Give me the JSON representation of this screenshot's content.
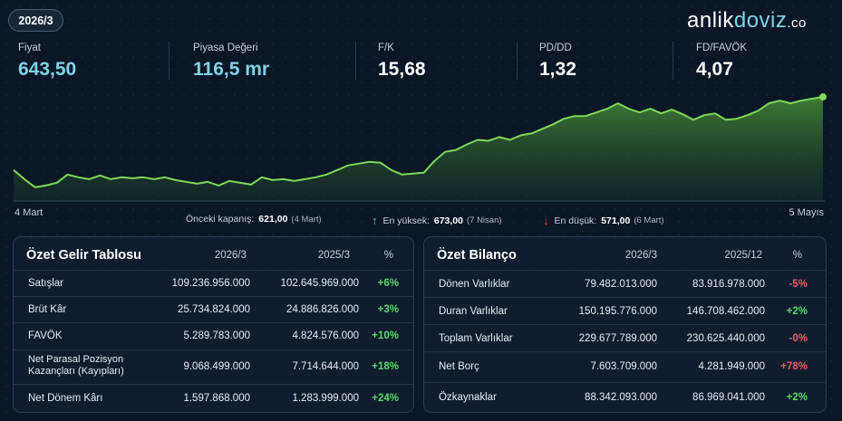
{
  "period": "2026/3",
  "logo": {
    "part1": "anlik",
    "part2": "doviz",
    "part3": ".co"
  },
  "kpis": [
    {
      "label": "Fiyat",
      "value": "643,50"
    },
    {
      "label": "Piyasa Değeri",
      "value": "116,5 mr"
    },
    {
      "label": "F/K",
      "value": "15,68"
    },
    {
      "label": "PD/DD",
      "value": "1,32"
    },
    {
      "label": "FD/FAVÖK",
      "value": "4,07"
    }
  ],
  "chart": {
    "start_label": "4 Mart",
    "end_label": "5 Mayıs",
    "line_color": "#7ed957",
    "points": [
      600,
      590,
      581,
      583,
      586,
      595,
      592,
      590,
      594,
      590,
      592,
      591,
      592,
      590,
      592,
      589,
      587,
      585,
      587,
      583,
      588,
      586,
      584,
      592,
      589,
      590,
      588,
      590,
      592,
      595,
      600,
      605,
      607,
      609,
      608,
      600,
      595,
      596,
      597,
      610,
      620,
      622,
      628,
      633,
      632,
      636,
      633,
      638,
      640,
      645,
      650,
      656,
      659,
      659,
      663,
      667,
      673,
      667,
      663,
      667,
      662,
      666,
      661,
      655,
      660,
      662,
      655,
      656,
      660,
      665,
      673,
      676,
      673,
      676,
      678,
      680
    ]
  },
  "stats": {
    "prev_close_label": "Önceki kapanış:",
    "prev_close_value": "621,00",
    "prev_close_date": "(4 Mart)",
    "high_label": "En yüksek:",
    "high_value": "673,00",
    "high_date": "(7 Nisan)",
    "low_label": "En düşük:",
    "low_value": "571,00",
    "low_date": "(6 Mart)"
  },
  "income": {
    "title": "Özet Gelir Tablosu",
    "col1": "2026/3",
    "col2": "2025/3",
    "col3": "%",
    "rows": [
      {
        "name": "Satışlar",
        "v1": "109.236.956.000",
        "v2": "102.645.969.000",
        "pct": "+6%"
      },
      {
        "name": "Brüt Kâr",
        "v1": "25.734.824.000",
        "v2": "24.886.826.000",
        "pct": "+3%"
      },
      {
        "name": "FAVÖK",
        "v1": "5.289.783.000",
        "v2": "4.824.576.000",
        "pct": "+10%"
      },
      {
        "name": "Net Parasal Pozisyon Kazançları (Kayıpları)",
        "v1": "9.068.499.000",
        "v2": "7.714.644.000",
        "pct": "+18%"
      },
      {
        "name": "Net Dönem Kârı",
        "v1": "1.597.868.000",
        "v2": "1.283.999.000",
        "pct": "+24%"
      }
    ]
  },
  "balance": {
    "title": "Özet Bilanço",
    "col1": "2026/3",
    "col2": "2025/12",
    "col3": "%",
    "rows": [
      {
        "name": "Dönen Varlıklar",
        "v1": "79.482.013.000",
        "v2": "83.916.978.000",
        "pct": "-5%"
      },
      {
        "name": "Duran Varlıklar",
        "v1": "150.195.776.000",
        "v2": "146.708.462.000",
        "pct": "+2%"
      },
      {
        "name": "Toplam Varlıklar",
        "v1": "229.677.789.000",
        "v2": "230.625.440.000",
        "pct": "-0%"
      },
      {
        "name": "Net Borç",
        "v1": "7.603.709.000",
        "v2": "4.281.949.000",
        "pct": "+78%"
      },
      {
        "name": "Özkaynaklar",
        "v1": "88.342.093.000",
        "v2": "86.969.041.000",
        "pct": "+2%"
      }
    ]
  }
}
